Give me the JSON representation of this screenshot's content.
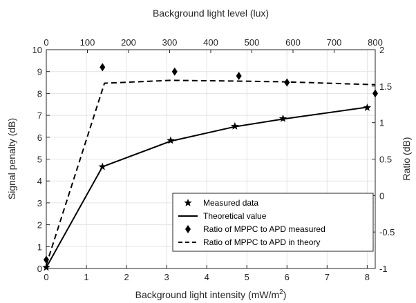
{
  "chart_data": {
    "type": "line",
    "top_axis": {
      "label": "Background light level (lux)",
      "range": [
        0,
        800
      ],
      "ticks": [
        "0",
        "100",
        "200",
        "300",
        "400",
        "500",
        "600",
        "700",
        "800"
      ]
    },
    "x_axis": {
      "label": "Background light intensity (mW/m",
      "label_superscript": "2",
      "label_suffix": ")",
      "range": [
        0,
        8.2
      ],
      "ticks": [
        "0",
        "1",
        "2",
        "3",
        "4",
        "5",
        "6",
        "7",
        "8"
      ]
    },
    "left_axis": {
      "label": "Signal penalty (dB)",
      "range": [
        0,
        10
      ],
      "ticks": [
        "0",
        "1",
        "2",
        "3",
        "4",
        "5",
        "6",
        "7",
        "8",
        "9",
        "10"
      ]
    },
    "right_axis": {
      "label": "Ratio (dB)",
      "range": [
        -1,
        2
      ],
      "ticks": [
        "-1",
        "-0.5",
        "0",
        "0.5",
        "1",
        "1.5",
        "2"
      ]
    },
    "grid": true,
    "legend_position": "bottom-right",
    "series": [
      {
        "name": "Measured data",
        "style": "star-marker",
        "axis": "left",
        "color": "#000000",
        "x": [
          0,
          1.4,
          3.1,
          4.7,
          5.9,
          8.0
        ],
        "y": [
          0.05,
          4.65,
          5.85,
          6.5,
          6.85,
          7.35
        ]
      },
      {
        "name": "Theoretical value",
        "style": "solid-line",
        "axis": "left",
        "color": "#000000",
        "x": [
          0,
          1.4,
          3.1,
          4.7,
          5.9,
          8.0
        ],
        "y": [
          0.05,
          4.65,
          5.82,
          6.48,
          6.83,
          7.37
        ]
      },
      {
        "name": "Ratio of MPPC to APD measured",
        "style": "diamond-marker",
        "axis": "right",
        "color": "#000000",
        "x": [
          0,
          1.4,
          3.2,
          4.8,
          6.0,
          8.2
        ],
        "y": [
          -0.88,
          1.76,
          1.7,
          1.64,
          1.55,
          1.4
        ]
      },
      {
        "name": "Ratio of MPPC to APD in theory",
        "style": "dashed-line",
        "axis": "right",
        "color": "#000000",
        "x": [
          0,
          1.45,
          3.1,
          4.7,
          5.9,
          8.2
        ],
        "y": [
          -0.95,
          1.54,
          1.58,
          1.57,
          1.56,
          1.52
        ]
      }
    ]
  }
}
